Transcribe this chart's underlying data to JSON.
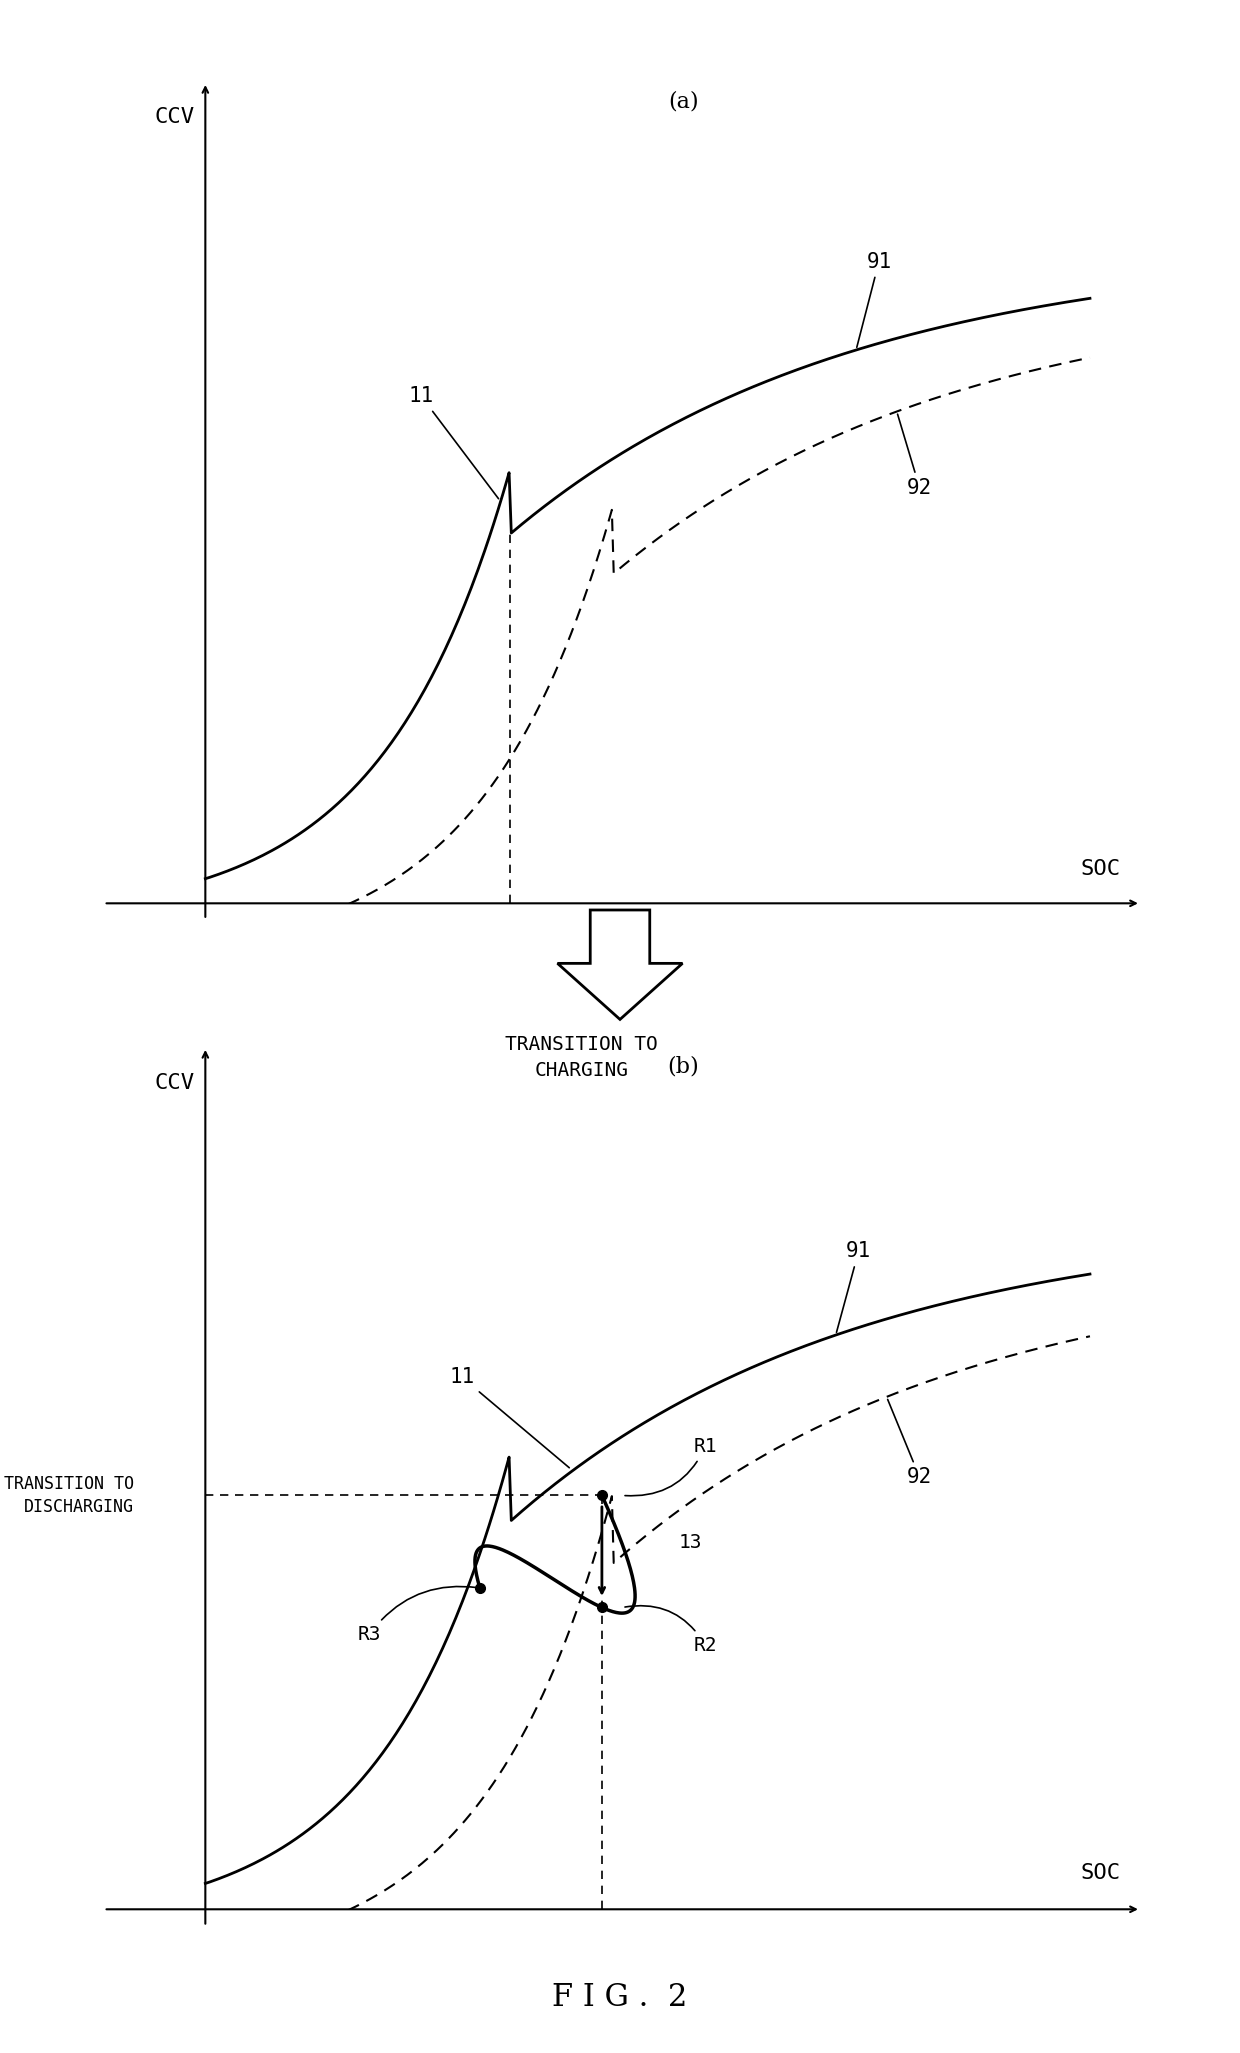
{
  "fig_label": "F I G .  2",
  "panel_a_label": "(a)",
  "panel_b_label": "(b)",
  "ccv_label": "CCV",
  "soc_label": "SOC",
  "transition_charging_x": "TRANSITION TO\nCHARGING",
  "transition_discharging_x": "TRANSITION TO\nDISCHARGING",
  "transition_discharging_y": "TRANSITION TO\nDISCHARGING",
  "label_91": "91",
  "label_92": "92",
  "label_11a": "11",
  "label_11b": "11",
  "label_R1": "R1",
  "label_R2": "R2",
  "label_R3": "R3",
  "label_13": "13",
  "bg_color": "#ffffff",
  "line_color": "#000000",
  "dashed_color": "#000000"
}
